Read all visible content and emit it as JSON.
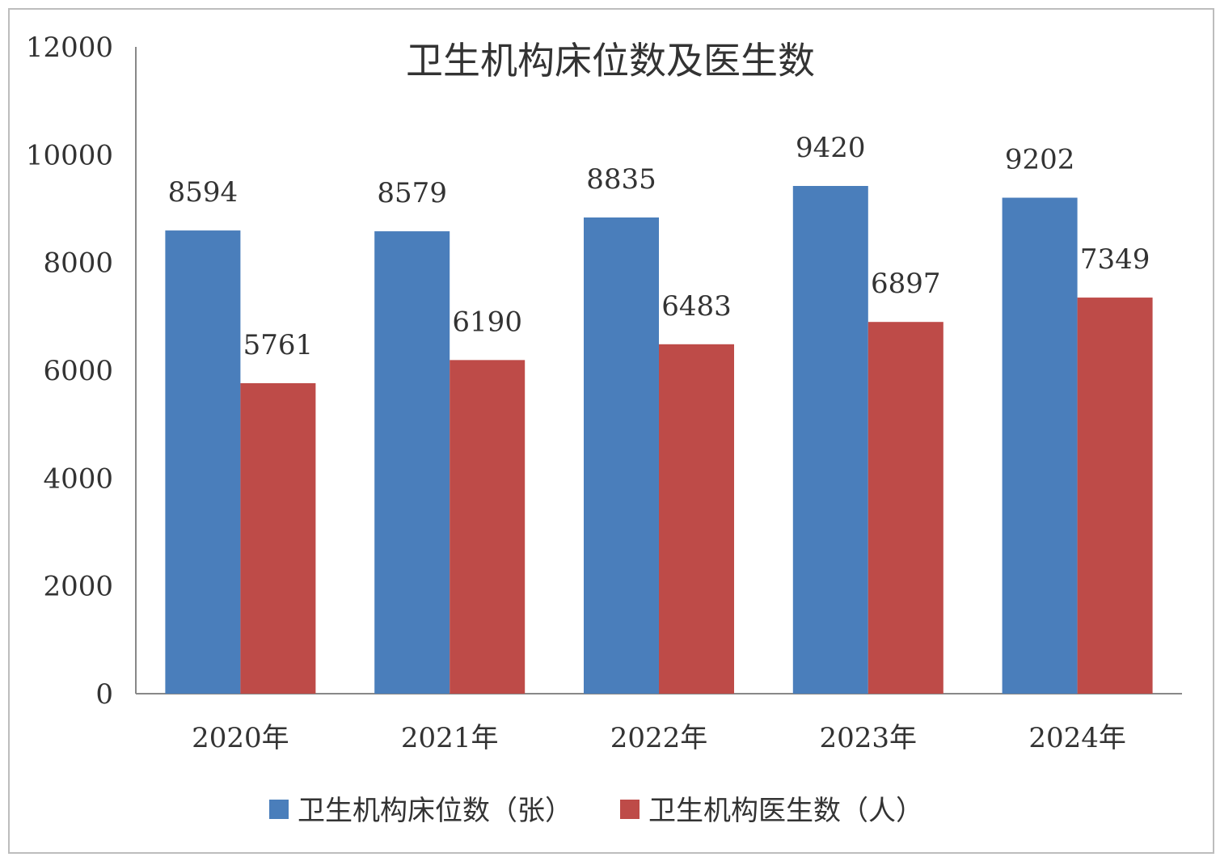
{
  "chart_data": {
    "type": "bar",
    "title": "卫生机构床位数及医生数",
    "xlabel": "",
    "ylabel": "",
    "categories": [
      "2020年",
      "2021年",
      "2022年",
      "2023年",
      "2024年"
    ],
    "series": [
      {
        "name": "卫生机构床位数（张）",
        "color": "#4a7ebb",
        "values": [
          8594,
          8579,
          8835,
          9420,
          9202
        ]
      },
      {
        "name": "卫生机构医生数（人）",
        "color": "#be4b48",
        "values": [
          5761,
          6190,
          6483,
          6897,
          7349
        ]
      }
    ],
    "ylim": [
      0,
      12000
    ],
    "yticks": [
      0,
      2000,
      4000,
      6000,
      8000,
      10000,
      12000
    ],
    "grid": false,
    "legend_position": "bottom"
  }
}
